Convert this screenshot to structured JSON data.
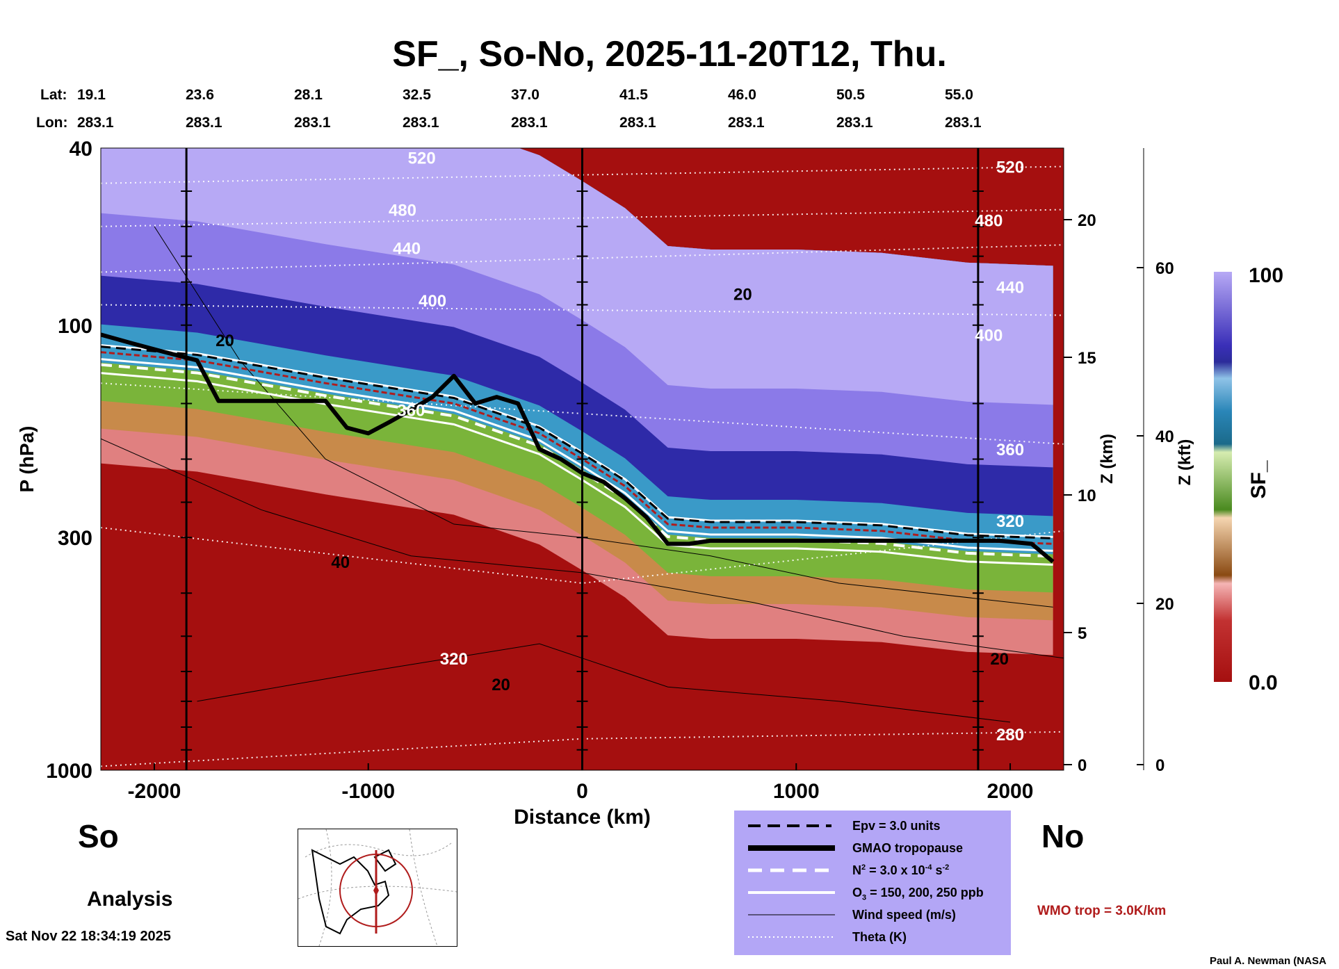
{
  "title": "SF_, So-No, 2025-11-20T12, Thu.",
  "lat_lon": {
    "lat_label": "Lat:",
    "lon_label": "Lon:",
    "lat": [
      "19.1",
      "23.6",
      "28.1",
      "32.5",
      "37.0",
      "41.5",
      "46.0",
      "50.5",
      "55.0"
    ],
    "lon": [
      "283.1",
      "283.1",
      "283.1",
      "283.1",
      "283.1",
      "283.1",
      "283.1",
      "283.1",
      "283.1"
    ]
  },
  "end_labels": {
    "left": "So",
    "right": "No"
  },
  "analysis_label": "Analysis",
  "timestamp": "Sat Nov 22 18:34:19 2025",
  "credit": "Paul A. Newman (NASA",
  "wmo_note": "WMO trop = 3.0K/km",
  "legend": {
    "epv": "Epv = 3.0 units",
    "tropopause": "GMAO tropopause",
    "n2_base": "N",
    "n2_sup": "2",
    "n2_mid": " = 3.0 x 10",
    "n2_exp": "-4",
    "n2_unit": " s",
    "n2_unit_sup": "-2",
    "o3_base": "O",
    "o3_sub": "3",
    "o3_rest": " = 150, 200, 250 ppb",
    "wind": "Wind speed (m/s)",
    "theta": "Theta (K)"
  },
  "colors": {
    "tropopause": "#000000",
    "wmo": "#b01c1c",
    "legend_bg": "#b3a6f6",
    "low_sf": "#a50f0f",
    "high_sf": "#b7a9f5"
  },
  "chart_data": {
    "type": "heatmap",
    "xlabel": "Distance (km)",
    "ylabel": "P (hPa)",
    "y2label": "Z (km)",
    "y3label": "Z (kft)",
    "colorbar_label": "SF_",
    "colorbar_range": [
      0.0,
      100
    ],
    "colorbar_ticks": [
      "100",
      "0.0"
    ],
    "x_range": [
      -2250,
      2250
    ],
    "x_ticks": [
      "-2000",
      "-1000",
      "0",
      "1000",
      "2000"
    ],
    "y_log_scale": true,
    "y_range_hpa": [
      1000,
      40
    ],
    "y_ticks": [
      "1000",
      "300",
      "100",
      "40"
    ],
    "z_km_ticks": [
      "0",
      "5",
      "10",
      "15",
      "20"
    ],
    "z_kft_ticks": [
      "0",
      "20",
      "40",
      "60"
    ],
    "theta_labels": [
      "520",
      "480",
      "440",
      "400",
      "360",
      "320",
      "280"
    ],
    "wind_labels": [
      "20",
      "40"
    ],
    "vertical_markers_km": [
      -1850,
      0,
      1850
    ],
    "tropopause": {
      "x": [
        -2250,
        -2100,
        -1950,
        -1800,
        -1700,
        -1500,
        -1300,
        -1200,
        -1100,
        -1000,
        -900,
        -800,
        -700,
        -600,
        -500,
        -400,
        -300,
        -200,
        -100,
        0,
        100,
        200,
        300,
        400,
        500,
        600,
        800,
        1000,
        1200,
        1400,
        1600,
        1800,
        1950,
        2100,
        2200
      ],
      "p_hpa": [
        105,
        110,
        115,
        120,
        148,
        148,
        148,
        148,
        170,
        175,
        165,
        155,
        145,
        130,
        150,
        145,
        150,
        190,
        200,
        215,
        225,
        245,
        270,
        310,
        310,
        305,
        305,
        305,
        305,
        305,
        305,
        305,
        305,
        310,
        340
      ]
    },
    "wmo_tropopause": {
      "x": [
        -2250,
        -1800,
        -1200,
        -600,
        -200,
        0,
        200,
        400,
        600,
        1000,
        1400,
        1800,
        2200
      ],
      "p_hpa": [
        115,
        120,
        135,
        150,
        175,
        200,
        230,
        280,
        285,
        285,
        290,
        305,
        310
      ]
    }
  }
}
